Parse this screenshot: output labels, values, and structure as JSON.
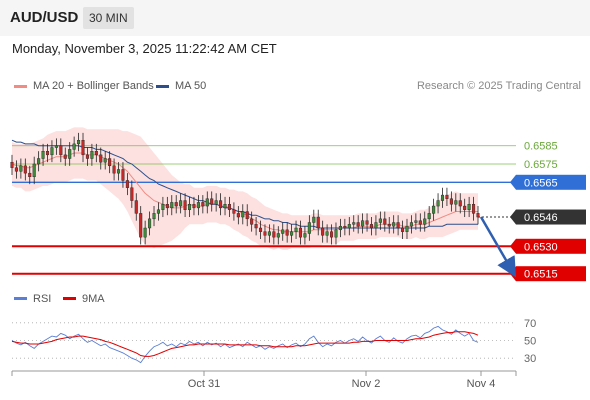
{
  "header": {
    "symbol": "AUD/USD",
    "timeframe": "30 MIN",
    "datetime": "Monday, November 3, 2025 11:22:42 AM CET"
  },
  "legend": {
    "ma20_label": "MA 20 + Bollinger Bands",
    "ma50_label": "MA 50",
    "ma20_color": "#f28b82",
    "ma50_color": "#2c4f8c",
    "credit": "Research © 2025 Trading Central"
  },
  "rsi_legend": {
    "rsi_label": "RSI",
    "ma9_label": "9MA",
    "rsi_color": "#5b7fd6",
    "ma9_color": "#e00000"
  },
  "chart_data": [
    {
      "type": "candlestick",
      "ylim": [
        0.6505,
        0.661
      ],
      "x_ticks": [
        "Oct 31",
        "Nov 2",
        "Nov 4"
      ],
      "price_levels": [
        {
          "label": "0.6585",
          "value": 0.6585,
          "color": "#7cbf4a"
        },
        {
          "label": "0.6575",
          "value": 0.6575,
          "color": "#7cbf4a"
        },
        {
          "label": "0.6565",
          "value": 0.6565,
          "color": "#2f6fd6"
        },
        {
          "label": "0.6546",
          "value": 0.6546,
          "color": "#333333"
        },
        {
          "label": "0.6530",
          "value": 0.653,
          "color": "#e00000"
        },
        {
          "label": "0.6515",
          "value": 0.6515,
          "color": "#e00000"
        }
      ],
      "closes": [
        0.6573,
        0.6571,
        0.6574,
        0.657,
        0.6568,
        0.6575,
        0.6578,
        0.6582,
        0.658,
        0.6584,
        0.6585,
        0.658,
        0.6578,
        0.6583,
        0.6586,
        0.6588,
        0.658,
        0.6578,
        0.6582,
        0.658,
        0.6576,
        0.6578,
        0.6574,
        0.657,
        0.6572,
        0.6566,
        0.6562,
        0.6555,
        0.6548,
        0.6535,
        0.654,
        0.6545,
        0.6548,
        0.655,
        0.6553,
        0.6551,
        0.6554,
        0.6552,
        0.6555,
        0.655,
        0.6553,
        0.6551,
        0.6554,
        0.6552,
        0.6556,
        0.6553,
        0.6555,
        0.6551,
        0.6553,
        0.655,
        0.6548,
        0.6546,
        0.6549,
        0.6545,
        0.6542,
        0.654,
        0.6538,
        0.6536,
        0.6538,
        0.6535,
        0.6537,
        0.6539,
        0.6536,
        0.6538,
        0.654,
        0.6535,
        0.6537,
        0.6543,
        0.6546,
        0.654,
        0.6536,
        0.6538,
        0.6535,
        0.6539,
        0.6541,
        0.654,
        0.6542,
        0.6543,
        0.6541,
        0.6544,
        0.6542,
        0.654,
        0.6543,
        0.6545,
        0.6542,
        0.6541,
        0.6543,
        0.654,
        0.6538,
        0.6541,
        0.6543,
        0.6544,
        0.6542,
        0.6545,
        0.6548,
        0.6552,
        0.6555,
        0.6558,
        0.6556,
        0.6553,
        0.6555,
        0.6552,
        0.655,
        0.6553,
        0.6548,
        0.6546
      ],
      "ma20": [
        0.6575,
        0.6574,
        0.6574,
        0.6573,
        0.6573,
        0.6574,
        0.6575,
        0.6576,
        0.6577,
        0.6578,
        0.6579,
        0.6579,
        0.6579,
        0.658,
        0.6581,
        0.6581,
        0.6581,
        0.658,
        0.658,
        0.658,
        0.6579,
        0.6578,
        0.6577,
        0.6576,
        0.6575,
        0.6573,
        0.6571,
        0.6568,
        0.6565,
        0.6562,
        0.6559,
        0.6557,
        0.6555,
        0.6554,
        0.6553,
        0.6552,
        0.6551,
        0.6551,
        0.6551,
        0.6552,
        0.6553,
        0.6552,
        0.6552,
        0.6552,
        0.6553,
        0.6553,
        0.6553,
        0.6552,
        0.6552,
        0.6551,
        0.655,
        0.6549,
        0.6548,
        0.6547,
        0.6545,
        0.6544,
        0.6542,
        0.6541,
        0.654,
        0.6539,
        0.6539,
        0.6538,
        0.6538,
        0.6538,
        0.6538,
        0.6538,
        0.6538,
        0.6538,
        0.6539,
        0.6539,
        0.6539,
        0.6539,
        0.6539,
        0.6539,
        0.654,
        0.654,
        0.654,
        0.654,
        0.6541,
        0.6541,
        0.6541,
        0.6541,
        0.6541,
        0.6542,
        0.6542,
        0.6542,
        0.6542,
        0.6542,
        0.6541,
        0.6541,
        0.6541,
        0.6542,
        0.6542,
        0.6542,
        0.6543,
        0.6544,
        0.6545,
        0.6546,
        0.6547,
        0.6548,
        0.6549,
        0.6549,
        0.6549,
        0.6549,
        0.6549,
        0.6549
      ],
      "ma50": [
        0.6588,
        0.6587,
        0.6587,
        0.6586,
        0.6586,
        0.6586,
        0.6585,
        0.6585,
        0.6585,
        0.6585,
        0.6585,
        0.6585,
        0.6585,
        0.6585,
        0.6585,
        0.6585,
        0.6584,
        0.6584,
        0.6584,
        0.6583,
        0.6583,
        0.6582,
        0.6581,
        0.658,
        0.6579,
        0.6578,
        0.6576,
        0.6575,
        0.6573,
        0.6571,
        0.6569,
        0.6567,
        0.6566,
        0.6564,
        0.6563,
        0.6562,
        0.6561,
        0.656,
        0.6559,
        0.6558,
        0.6557,
        0.6556,
        0.6555,
        0.6555,
        0.6554,
        0.6553,
        0.6553,
        0.6552,
        0.6551,
        0.6551,
        0.655,
        0.6549,
        0.6549,
        0.6548,
        0.6547,
        0.6547,
        0.6546,
        0.6545,
        0.6545,
        0.6544,
        0.6544,
        0.6543,
        0.6543,
        0.6542,
        0.6542,
        0.6541,
        0.6541,
        0.6541,
        0.6541,
        0.654,
        0.654,
        0.654,
        0.654,
        0.654,
        0.654,
        0.654,
        0.654,
        0.654,
        0.654,
        0.654,
        0.654,
        0.654,
        0.654,
        0.654,
        0.654,
        0.654,
        0.654,
        0.654,
        0.654,
        0.654,
        0.654,
        0.654,
        0.654,
        0.654,
        0.6541,
        0.6541,
        0.6541,
        0.6541,
        0.6542,
        0.6542,
        0.6542,
        0.6542,
        0.6542,
        0.6542,
        0.6542,
        0.6542
      ],
      "bb_width": [
        0.0012,
        0.0012,
        0.0012,
        0.0013,
        0.0013,
        0.0013,
        0.0013,
        0.0013,
        0.0014,
        0.0014,
        0.0014,
        0.0014,
        0.0014,
        0.0014,
        0.0014,
        0.0014,
        0.0014,
        0.0014,
        0.0014,
        0.0014,
        0.0015,
        0.0016,
        0.0017,
        0.0018,
        0.0019,
        0.002,
        0.0022,
        0.0024,
        0.0026,
        0.0028,
        0.0028,
        0.0027,
        0.0026,
        0.0024,
        0.0022,
        0.002,
        0.0018,
        0.0016,
        0.0014,
        0.0012,
        0.0011,
        0.001,
        0.001,
        0.001,
        0.001,
        0.001,
        0.001,
        0.001,
        0.001,
        0.001,
        0.0011,
        0.0011,
        0.0012,
        0.0012,
        0.0012,
        0.0012,
        0.0012,
        0.0011,
        0.0011,
        0.0011,
        0.001,
        0.001,
        0.001,
        0.0009,
        0.0009,
        0.0009,
        0.0009,
        0.0009,
        0.0009,
        0.0009,
        0.0008,
        0.0008,
        0.0008,
        0.0008,
        0.0007,
        0.0007,
        0.0007,
        0.0007,
        0.0007,
        0.0007,
        0.0007,
        0.0007,
        0.0007,
        0.0007,
        0.0007,
        0.0007,
        0.0007,
        0.0007,
        0.0007,
        0.0007,
        0.0007,
        0.0007,
        0.0008,
        0.0008,
        0.0008,
        0.0009,
        0.001,
        0.0011,
        0.0011,
        0.0011,
        0.0011,
        0.001,
        0.001,
        0.001,
        0.001,
        0.001
      ],
      "forecast": {
        "from": 0.6546,
        "to": 0.6515
      }
    },
    {
      "type": "line",
      "ylim": [
        20,
        80
      ],
      "y_ticks": [
        "70",
        "50",
        "30"
      ],
      "y_tick_values": [
        70,
        50,
        30
      ],
      "rsi": [
        50,
        47,
        45,
        48,
        44,
        41,
        46,
        49,
        52,
        55,
        54,
        58,
        56,
        52,
        55,
        57,
        52,
        48,
        50,
        47,
        44,
        46,
        42,
        40,
        38,
        36,
        33,
        30,
        28,
        25,
        32,
        38,
        43,
        45,
        48,
        44,
        46,
        43,
        47,
        45,
        49,
        46,
        48,
        44,
        48,
        45,
        47,
        43,
        46,
        42,
        44,
        46,
        43,
        48,
        45,
        42,
        44,
        40,
        43,
        41,
        44,
        46,
        42,
        45,
        47,
        43,
        46,
        52,
        55,
        48,
        43,
        46,
        44,
        48,
        50,
        47,
        50,
        52,
        49,
        54,
        50,
        47,
        52,
        55,
        50,
        48,
        53,
        49,
        47,
        52,
        55,
        56,
        53,
        58,
        60,
        64,
        66,
        62,
        60,
        57,
        62,
        58,
        55,
        58,
        50,
        48
      ],
      "ma9": [
        49,
        48,
        47,
        47,
        46,
        46,
        46,
        47,
        48,
        49,
        51,
        52,
        53,
        54,
        54,
        55,
        55,
        54,
        53,
        52,
        51,
        49,
        48,
        46,
        44,
        42,
        40,
        38,
        36,
        33,
        32,
        32,
        33,
        35,
        37,
        39,
        41,
        42,
        43,
        44,
        45,
        45,
        46,
        46,
        46,
        46,
        46,
        46,
        46,
        45,
        45,
        45,
        45,
        45,
        45,
        45,
        44,
        44,
        44,
        43,
        43,
        43,
        43,
        43,
        44,
        44,
        44,
        45,
        46,
        47,
        47,
        47,
        47,
        47,
        47,
        47,
        47,
        48,
        48,
        49,
        49,
        49,
        50,
        50,
        50,
        50,
        50,
        50,
        50,
        50,
        51,
        52,
        52,
        53,
        54,
        56,
        57,
        58,
        59,
        59,
        60,
        60,
        60,
        59,
        58,
        56
      ]
    }
  ]
}
